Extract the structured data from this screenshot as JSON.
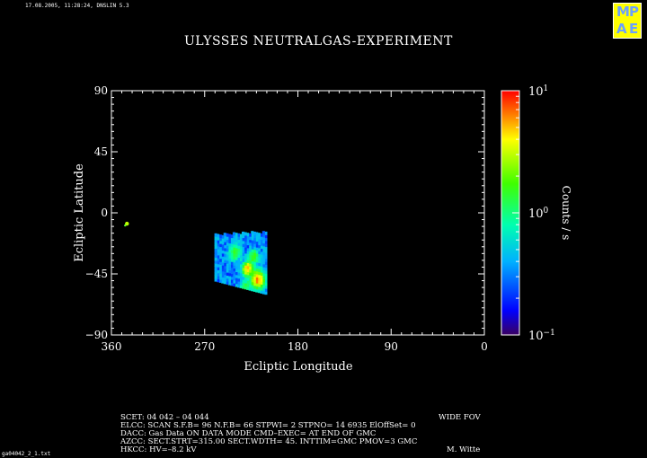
{
  "header": {
    "timestamp": "17.08.2005, 11:28:24, DNSLIN 5.3",
    "title": "ULYSSES NEUTRALGAS-EXPERIMENT"
  },
  "logo": {
    "letters": [
      "M",
      "P",
      "A",
      "E"
    ],
    "bg_color": "#ffff00",
    "fg_color": "#6aa0ff"
  },
  "chart_data": {
    "type": "heatmap",
    "title": "ULYSSES NEUTRALGAS-EXPERIMENT",
    "xlabel": "Ecliptic Longitude",
    "ylabel": "Ecliptic Latitude",
    "xlim": [
      360,
      0
    ],
    "ylim": [
      -90,
      90
    ],
    "x_ticks": [
      "360",
      "270",
      "180",
      "90",
      "0"
    ],
    "y_ticks": [
      "90",
      "45",
      "0",
      "−45",
      "−90"
    ],
    "colorbar": {
      "label": "Counts / s",
      "scale": "log",
      "range": [
        0.1,
        10
      ],
      "tick_labels": [
        {
          "base": "10",
          "exp": "1",
          "value": 10
        },
        {
          "base": "10",
          "exp": "0",
          "value": 1
        },
        {
          "base": "10",
          "exp": "−1",
          "value": 0.1
        }
      ]
    },
    "regions": [
      {
        "shape": "sector",
        "lon_range": [
          210,
          260
        ],
        "lat_top": [
          -15,
          -17
        ],
        "lat_bottom": [
          -60,
          -50
        ],
        "background_counts": 0.35,
        "hotspots": [
          {
            "lon": 218,
            "lat": -50,
            "counts": 6.0,
            "radius": 5
          },
          {
            "lon": 228,
            "lat": -42,
            "counts": 5.0,
            "radius": 4
          },
          {
            "lon": 222,
            "lat": -33,
            "counts": 1.6,
            "radius": 4
          },
          {
            "lon": 240,
            "lat": -30,
            "counts": 1.1,
            "radius": 5
          },
          {
            "lon": 230,
            "lat": -55,
            "counts": 0.9,
            "radius": 4
          }
        ]
      },
      {
        "shape": "point",
        "lon": 345,
        "lat": -8,
        "counts": 3.0
      }
    ]
  },
  "footer": {
    "lines": [
      "SCET: 04 042 – 04 044",
      "ELCC: SCAN   S.F.B= 96 N.F.B= 66 STPWI=  2  STPNO= 14   6935    ElOffSet= 0",
      "DACC: Gas Data ON    DATA MODE CMD–EXEC= AT END OF GMC",
      "AZCC: SECT.STRT=315.00 SECT.WDTH= 45. INTTIM=GMC PMOV=3 GMC",
      "HKCC: HV=–8.2 kV"
    ],
    "fov": "WIDE FOV",
    "author": "M. Witte",
    "filename": "ga04042_2_1.txt"
  }
}
